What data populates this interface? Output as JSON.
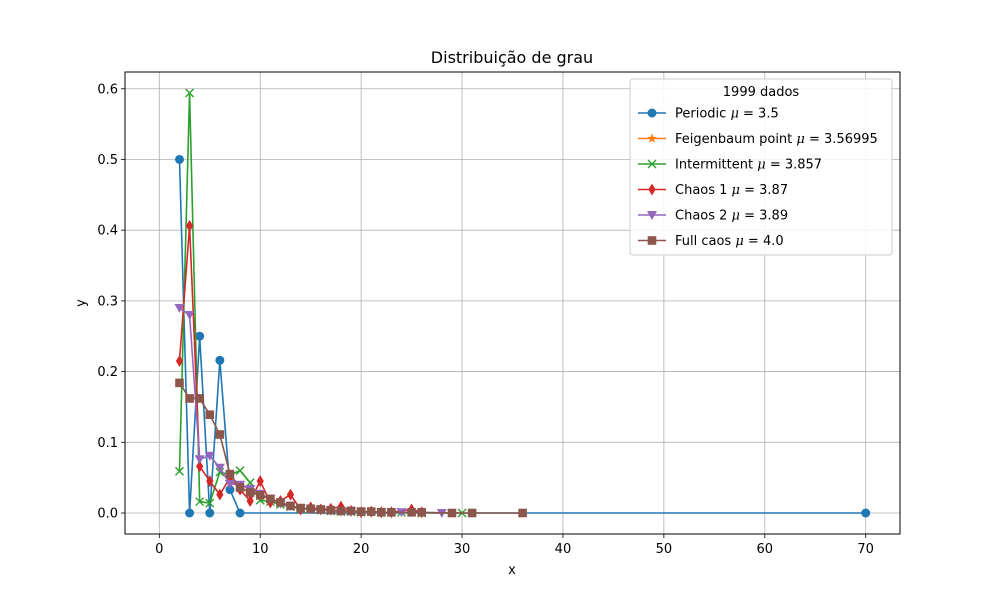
{
  "chart_data": {
    "type": "line",
    "title": "Distribuição de grau",
    "xlabel": "x",
    "ylabel": "y",
    "xlim": [
      -3.4,
      73.4
    ],
    "ylim": [
      -0.0297,
      0.6237
    ],
    "xticks": [
      0,
      10,
      20,
      30,
      40,
      50,
      60,
      70
    ],
    "yticks": [
      0.0,
      0.1,
      0.2,
      0.3,
      0.4,
      0.5,
      0.6
    ],
    "xtick_labels": [
      "0",
      "10",
      "20",
      "30",
      "40",
      "50",
      "60",
      "70"
    ],
    "ytick_labels": [
      "0.0",
      "0.1",
      "0.2",
      "0.3",
      "0.4",
      "0.5",
      "0.6"
    ],
    "grid": true,
    "legend": {
      "title": "1999 dados",
      "placement": "top-right"
    },
    "series": [
      {
        "name": "Periodic",
        "mu": "3.5",
        "color": "#1f77b4",
        "marker": "circle",
        "points": [
          [
            2,
            0.5
          ],
          [
            3,
            0.0
          ],
          [
            4,
            0.25
          ],
          [
            5,
            0.0
          ],
          [
            6,
            0.216
          ],
          [
            7,
            0.033
          ],
          [
            8,
            0.0
          ],
          [
            70,
            0.0
          ]
        ]
      },
      {
        "name": "Feigenbaum point",
        "mu": "3.56995",
        "color": "#ff7f0e",
        "marker": "star",
        "points": []
      },
      {
        "name": "Intermittent",
        "mu": "3.857",
        "color": "#2ca02c",
        "marker": "x",
        "points": [
          [
            2,
            0.059
          ],
          [
            3,
            0.594
          ],
          [
            4,
            0.016
          ],
          [
            5,
            0.014
          ],
          [
            6,
            0.058
          ],
          [
            7,
            0.054
          ],
          [
            8,
            0.06
          ],
          [
            9,
            0.043
          ],
          [
            10,
            0.018
          ],
          [
            11,
            0.016
          ],
          [
            12,
            0.012
          ],
          [
            13,
            0.009
          ],
          [
            14,
            0.006
          ],
          [
            15,
            0.005
          ],
          [
            16,
            0.004
          ],
          [
            17,
            0.003
          ],
          [
            18,
            0.002
          ],
          [
            19,
            0.002
          ],
          [
            20,
            0.001
          ],
          [
            22,
            0.001
          ],
          [
            24,
            0.001
          ],
          [
            26,
            0.0
          ],
          [
            30,
            0.0
          ]
        ]
      },
      {
        "name": "Chaos 1",
        "mu": "3.87",
        "color": "#d62728",
        "marker": "diamond",
        "points": [
          [
            2,
            0.215
          ],
          [
            3,
            0.406
          ],
          [
            4,
            0.066
          ],
          [
            5,
            0.045
          ],
          [
            6,
            0.026
          ],
          [
            7,
            0.05
          ],
          [
            8,
            0.033
          ],
          [
            9,
            0.017
          ],
          [
            10,
            0.045
          ],
          [
            11,
            0.015
          ],
          [
            12,
            0.017
          ],
          [
            13,
            0.026
          ],
          [
            14,
            0.005
          ],
          [
            15,
            0.008
          ],
          [
            16,
            0.005
          ],
          [
            17,
            0.006
          ],
          [
            18,
            0.009
          ],
          [
            19,
            0.003
          ],
          [
            20,
            0.001
          ],
          [
            21,
            0.002
          ],
          [
            22,
            0.001
          ],
          [
            23,
            0.001
          ],
          [
            25,
            0.005
          ],
          [
            26,
            0.001
          ]
        ]
      },
      {
        "name": "Chaos 2",
        "mu": "3.89",
        "color": "#9467bd",
        "marker": "triangle-down",
        "points": [
          [
            2,
            0.29
          ],
          [
            3,
            0.28
          ],
          [
            4,
            0.076
          ],
          [
            5,
            0.081
          ],
          [
            6,
            0.064
          ],
          [
            7,
            0.041
          ],
          [
            8,
            0.04
          ],
          [
            9,
            0.034
          ],
          [
            10,
            0.027
          ],
          [
            11,
            0.02
          ],
          [
            12,
            0.013
          ],
          [
            13,
            0.01
          ],
          [
            14,
            0.007
          ],
          [
            15,
            0.005
          ],
          [
            16,
            0.004
          ],
          [
            17,
            0.003
          ],
          [
            18,
            0.002
          ],
          [
            19,
            0.002
          ],
          [
            20,
            0.001
          ],
          [
            22,
            0.001
          ],
          [
            24,
            0.001
          ],
          [
            28,
            0.0
          ]
        ]
      },
      {
        "name": "Full caos",
        "mu": "4.0",
        "color": "#8c564b",
        "marker": "square",
        "points": [
          [
            2,
            0.184
          ],
          [
            3,
            0.162
          ],
          [
            4,
            0.162
          ],
          [
            5,
            0.139
          ],
          [
            6,
            0.111
          ],
          [
            7,
            0.055
          ],
          [
            8,
            0.036
          ],
          [
            9,
            0.029
          ],
          [
            10,
            0.025
          ],
          [
            11,
            0.02
          ],
          [
            12,
            0.015
          ],
          [
            13,
            0.01
          ],
          [
            14,
            0.007
          ],
          [
            15,
            0.006
          ],
          [
            16,
            0.005
          ],
          [
            17,
            0.004
          ],
          [
            18,
            0.003
          ],
          [
            19,
            0.003
          ],
          [
            20,
            0.002
          ],
          [
            21,
            0.002
          ],
          [
            22,
            0.001
          ],
          [
            23,
            0.001
          ],
          [
            25,
            0.001
          ],
          [
            26,
            0.001
          ],
          [
            29,
            0.0
          ],
          [
            31,
            0.0
          ],
          [
            36,
            0.0
          ]
        ]
      }
    ]
  }
}
